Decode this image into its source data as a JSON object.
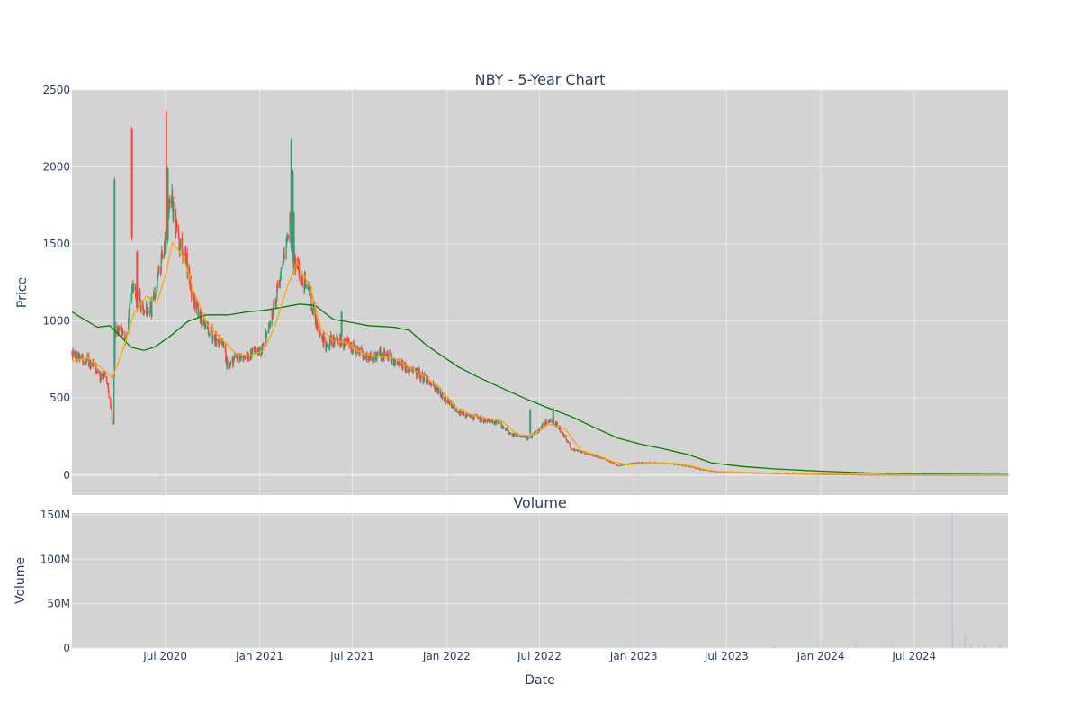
{
  "chart_data": {
    "type": "candlestick",
    "title": "NBY - 5-Year Chart",
    "subplot_title": "Volume",
    "xlabel": "Date",
    "price_ylabel": "Price",
    "volume_ylabel": "Volume",
    "x_range": [
      "2020-01-01",
      "2024-12-31"
    ],
    "x_ticks": [
      {
        "date": "2020-07-01",
        "label": "Jul 2020"
      },
      {
        "date": "2021-01-01",
        "label": "Jan 2021"
      },
      {
        "date": "2021-07-01",
        "label": "Jul 2021"
      },
      {
        "date": "2022-01-01",
        "label": "Jan 2022"
      },
      {
        "date": "2022-07-01",
        "label": "Jul 2022"
      },
      {
        "date": "2023-01-01",
        "label": "Jan 2023"
      },
      {
        "date": "2023-07-01",
        "label": "Jul 2023"
      },
      {
        "date": "2024-01-01",
        "label": "Jan 2024"
      },
      {
        "date": "2024-07-01",
        "label": "Jul 2024"
      }
    ],
    "price_ylim": [
      -130,
      2500
    ],
    "price_yticks": [
      0,
      500,
      1000,
      1500,
      2000,
      2500
    ],
    "volume_ylim": [
      0,
      152000000
    ],
    "volume_yticks": [
      {
        "value": 0,
        "label": "0"
      },
      {
        "value": 50000000,
        "label": "50M"
      },
      {
        "value": 100000000,
        "label": "100M"
      },
      {
        "value": 150000000,
        "label": "150M"
      }
    ],
    "grid": true,
    "legend": "none",
    "colors": {
      "increasing": "#3d9970",
      "decreasing": "#ff4136",
      "sma_short": "#ffa500",
      "sma_long": "#008000",
      "volume": "#b7bfe0",
      "plot_bg": "#d3d3d3",
      "grid": "#e8e8e8"
    },
    "price_anchors": [
      [
        "2020-01-01",
        790
      ],
      [
        "2020-01-20",
        760
      ],
      [
        "2020-02-10",
        720
      ],
      [
        "2020-02-25",
        650
      ],
      [
        "2020-03-08",
        640
      ],
      [
        "2020-03-15",
        480
      ],
      [
        "2020-03-21",
        320
      ],
      [
        "2020-03-25",
        950
      ],
      [
        "2020-04-05",
        930
      ],
      [
        "2020-04-15",
        880
      ],
      [
        "2020-04-25",
        1200
      ],
      [
        "2020-05-08",
        1150
      ],
      [
        "2020-05-20",
        1080
      ],
      [
        "2020-06-05",
        1100
      ],
      [
        "2020-06-20",
        1350
      ],
      [
        "2020-07-01",
        1500
      ],
      [
        "2020-07-10",
        1850
      ],
      [
        "2020-07-25",
        1550
      ],
      [
        "2020-08-10",
        1400
      ],
      [
        "2020-08-25",
        1150
      ],
      [
        "2020-09-10",
        1000
      ],
      [
        "2020-10-01",
        920
      ],
      [
        "2020-10-20",
        850
      ],
      [
        "2020-11-01",
        700
      ],
      [
        "2020-11-20",
        780
      ],
      [
        "2020-12-10",
        760
      ],
      [
        "2021-01-05",
        820
      ],
      [
        "2021-01-20",
        950
      ],
      [
        "2021-02-05",
        1200
      ],
      [
        "2021-02-20",
        1450
      ],
      [
        "2021-03-01",
        1700
      ],
      [
        "2021-03-12",
        1380
      ],
      [
        "2021-03-25",
        1300
      ],
      [
        "2021-04-10",
        1150
      ],
      [
        "2021-04-25",
        950
      ],
      [
        "2021-05-10",
        850
      ],
      [
        "2021-06-01",
        880
      ],
      [
        "2021-06-20",
        850
      ],
      [
        "2021-07-10",
        800
      ],
      [
        "2021-08-01",
        760
      ],
      [
        "2021-08-25",
        780
      ],
      [
        "2021-09-20",
        750
      ],
      [
        "2021-10-15",
        700
      ],
      [
        "2021-11-10",
        650
      ],
      [
        "2021-12-05",
        580
      ],
      [
        "2022-01-01",
        490
      ],
      [
        "2022-01-20",
        420
      ],
      [
        "2022-02-15",
        390
      ],
      [
        "2022-03-15",
        360
      ],
      [
        "2022-04-10",
        340
      ],
      [
        "2022-05-10",
        260
      ],
      [
        "2022-06-10",
        240
      ],
      [
        "2022-07-01",
        290
      ],
      [
        "2022-07-20",
        370
      ],
      [
        "2022-08-10",
        300
      ],
      [
        "2022-09-01",
        170
      ],
      [
        "2022-10-01",
        140
      ],
      [
        "2022-11-01",
        110
      ],
      [
        "2022-12-01",
        60
      ],
      [
        "2023-01-05",
        80
      ],
      [
        "2023-02-15",
        80
      ],
      [
        "2023-03-15",
        75
      ],
      [
        "2023-04-15",
        60
      ],
      [
        "2023-05-15",
        35
      ],
      [
        "2023-06-15",
        22
      ],
      [
        "2023-07-15",
        20
      ],
      [
        "2023-09-01",
        14
      ],
      [
        "2023-11-01",
        10
      ],
      [
        "2024-01-01",
        6
      ],
      [
        "2024-04-01",
        3
      ],
      [
        "2024-08-01",
        2
      ],
      [
        "2024-12-31",
        1.5
      ]
    ],
    "spikes": [
      {
        "date": "2020-03-24",
        "high": 1930,
        "low": 680,
        "up": true
      },
      {
        "date": "2020-04-27",
        "high": 2260,
        "low": 1520,
        "up": false
      },
      {
        "date": "2020-05-07",
        "high": 1460,
        "low": 1060,
        "up": false
      },
      {
        "date": "2020-07-03",
        "high": 2370,
        "low": 1540,
        "up": false
      },
      {
        "date": "2020-07-06",
        "high": 2000,
        "low": 1500,
        "up": true
      },
      {
        "date": "2021-03-04",
        "high": 2190,
        "low": 1450,
        "up": true
      },
      {
        "date": "2021-03-07",
        "high": 1980,
        "low": 1380,
        "up": true
      },
      {
        "date": "2021-03-09",
        "high": 1710,
        "low": 1300,
        "up": true
      },
      {
        "date": "2021-06-10",
        "high": 1070,
        "low": 870,
        "up": true
      },
      {
        "date": "2022-06-13",
        "high": 430,
        "low": 250,
        "up": true
      },
      {
        "date": "2022-07-28",
        "high": 440,
        "low": 320,
        "up": true
      }
    ],
    "sma_short": [
      [
        "2020-01-01",
        740
      ],
      [
        "2020-02-01",
        760
      ],
      [
        "2020-03-01",
        690
      ],
      [
        "2020-03-20",
        630
      ],
      [
        "2020-04-10",
        820
      ],
      [
        "2020-05-01",
        1050
      ],
      [
        "2020-05-25",
        1160
      ],
      [
        "2020-06-15",
        1120
      ],
      [
        "2020-07-01",
        1290
      ],
      [
        "2020-07-15",
        1510
      ],
      [
        "2020-08-05",
        1420
      ],
      [
        "2020-08-25",
        1200
      ],
      [
        "2020-09-20",
        980
      ],
      [
        "2020-10-20",
        880
      ],
      [
        "2020-11-15",
        790
      ],
      [
        "2020-12-10",
        770
      ],
      [
        "2021-01-10",
        810
      ],
      [
        "2021-02-01",
        980
      ],
      [
        "2021-02-25",
        1230
      ],
      [
        "2021-03-15",
        1380
      ],
      [
        "2021-04-10",
        1220
      ],
      [
        "2021-05-01",
        950
      ],
      [
        "2021-05-25",
        870
      ],
      [
        "2021-06-20",
        860
      ],
      [
        "2021-07-20",
        790
      ],
      [
        "2021-08-20",
        770
      ],
      [
        "2021-09-20",
        760
      ],
      [
        "2021-10-20",
        700
      ],
      [
        "2021-11-20",
        640
      ],
      [
        "2021-12-20",
        560
      ],
      [
        "2022-01-20",
        430
      ],
      [
        "2022-02-20",
        390
      ],
      [
        "2022-03-20",
        370
      ],
      [
        "2022-04-20",
        350
      ],
      [
        "2022-05-20",
        260
      ],
      [
        "2022-06-20",
        260
      ],
      [
        "2022-07-20",
        330
      ],
      [
        "2022-08-20",
        300
      ],
      [
        "2022-09-20",
        160
      ],
      [
        "2022-10-20",
        130
      ],
      [
        "2022-11-20",
        90
      ],
      [
        "2022-12-20",
        65
      ],
      [
        "2023-01-20",
        75
      ],
      [
        "2023-02-20",
        80
      ],
      [
        "2023-03-20",
        75
      ],
      [
        "2023-04-20",
        60
      ],
      [
        "2023-05-20",
        35
      ],
      [
        "2023-06-20",
        22
      ],
      [
        "2023-08-01",
        18
      ],
      [
        "2023-10-01",
        11
      ],
      [
        "2024-01-01",
        6
      ],
      [
        "2024-06-01",
        3
      ],
      [
        "2024-12-31",
        1.5
      ]
    ],
    "sma_long": [
      [
        "2020-01-01",
        1060
      ],
      [
        "2020-01-20",
        1020
      ],
      [
        "2020-02-20",
        960
      ],
      [
        "2020-03-15",
        970
      ],
      [
        "2020-04-05",
        900
      ],
      [
        "2020-04-25",
        830
      ],
      [
        "2020-05-20",
        810
      ],
      [
        "2020-06-10",
        830
      ],
      [
        "2020-07-10",
        900
      ],
      [
        "2020-08-15",
        1000
      ],
      [
        "2020-09-20",
        1040
      ],
      [
        "2020-11-01",
        1040
      ],
      [
        "2020-12-10",
        1060
      ],
      [
        "2021-01-10",
        1070
      ],
      [
        "2021-02-15",
        1090
      ],
      [
        "2021-03-20",
        1110
      ],
      [
        "2021-04-20",
        1100
      ],
      [
        "2021-05-25",
        1010
      ],
      [
        "2021-07-01",
        990
      ],
      [
        "2021-08-01",
        970
      ],
      [
        "2021-09-20",
        960
      ],
      [
        "2021-10-20",
        940
      ],
      [
        "2021-11-20",
        850
      ],
      [
        "2021-12-20",
        780
      ],
      [
        "2022-01-25",
        700
      ],
      [
        "2022-03-01",
        640
      ],
      [
        "2022-04-15",
        570
      ],
      [
        "2022-06-01",
        500
      ],
      [
        "2022-07-15",
        440
      ],
      [
        "2022-09-01",
        380
      ],
      [
        "2022-10-15",
        310
      ],
      [
        "2022-12-01",
        240
      ],
      [
        "2023-01-15",
        200
      ],
      [
        "2023-03-01",
        170
      ],
      [
        "2023-04-20",
        130
      ],
      [
        "2023-06-01",
        80
      ],
      [
        "2023-08-01",
        55
      ],
      [
        "2023-10-01",
        40
      ],
      [
        "2024-01-01",
        25
      ],
      [
        "2024-04-01",
        14
      ],
      [
        "2024-08-01",
        7
      ],
      [
        "2024-12-31",
        4
      ]
    ],
    "volume_spikes": [
      {
        "date": "2024-09-13",
        "value": 150000000
      },
      {
        "date": "2024-09-14",
        "value": 22000000
      },
      {
        "date": "2024-10-08",
        "value": 18000000
      },
      {
        "date": "2024-10-20",
        "value": 4000000
      },
      {
        "date": "2024-11-15",
        "value": 2500000
      },
      {
        "date": "2024-12-15",
        "value": 2500000
      },
      {
        "date": "2024-05-20",
        "value": 1800000
      },
      {
        "date": "2024-03-10",
        "value": 1500000
      },
      {
        "date": "2023-10-01",
        "value": 2000000
      }
    ]
  }
}
